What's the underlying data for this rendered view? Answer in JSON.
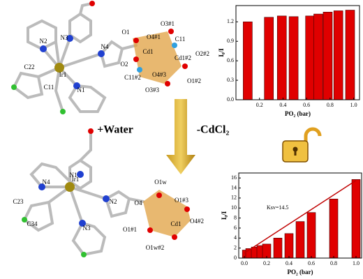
{
  "chart_data": [
    {
      "type": "bar",
      "x": [
        0.1,
        0.28,
        0.39,
        0.49,
        0.63,
        0.7,
        0.78,
        0.87,
        0.97
      ],
      "values": [
        1.2,
        1.27,
        1.29,
        1.28,
        1.29,
        1.32,
        1.35,
        1.37,
        1.38
      ],
      "color": "#e00000",
      "xlim": [
        0,
        1.05
      ],
      "ylim": [
        0,
        1.45
      ],
      "xticks": [
        0.2,
        0.4,
        0.6,
        0.8,
        {
          "value": 1,
          "label": "1.0"
        }
      ],
      "yticks": [
        {
          "value": 0,
          "label": "0.0"
        },
        0.3,
        0.6,
        0.9,
        1.2
      ],
      "xlabel": "PO₂ (bar)",
      "ylabel": "I₀/I"
    },
    {
      "type": "bar",
      "x": [
        0.02,
        0.05,
        0.1,
        0.15,
        0.2,
        0.3,
        0.4,
        0.5,
        0.6,
        0.8,
        1
      ],
      "values": [
        1.6,
        1.9,
        2.2,
        2.5,
        2.8,
        4.0,
        4.9,
        7.3,
        9.1,
        11.8,
        15.7
      ],
      "color": "#e00000",
      "xlim": [
        -0.05,
        1.05
      ],
      "ylim": [
        0,
        17
      ],
      "xticks": [
        {
          "value": 0,
          "label": "0.0"
        },
        0.2,
        0.4,
        0.6,
        0.8,
        {
          "value": 1,
          "label": "1.0"
        }
      ],
      "yticks": [
        0,
        2,
        4,
        6,
        8,
        10,
        12,
        14,
        16
      ],
      "xlabel": "PO₂ (bar)",
      "ylabel": "I₀/I",
      "annotation": "Ksv=14.5",
      "fit": {
        "x": [
          0,
          1
        ],
        "values": [
          1.0,
          15.5
        ],
        "color": "#c00000"
      }
    }
  ],
  "reaction": {
    "reagent": "+Water",
    "product": "-CdCl₂"
  },
  "structure_labels": [
    "O1",
    "O3#1",
    "O4#1",
    "C11",
    "N2",
    "N3",
    "N4",
    "Cd1",
    "C22",
    "Ir1",
    "O2",
    "Cd1#2",
    "O2#2",
    "C11#2",
    "O4#3",
    "O1#2",
    "O3#3",
    "C11",
    "N1",
    "N1",
    "N4",
    "Ir1",
    "N2",
    "C23",
    "O1w",
    "O4",
    "O1#3",
    "Cd1",
    "O4#2",
    "C34",
    "N3",
    "O1#1",
    "O1w#2"
  ]
}
